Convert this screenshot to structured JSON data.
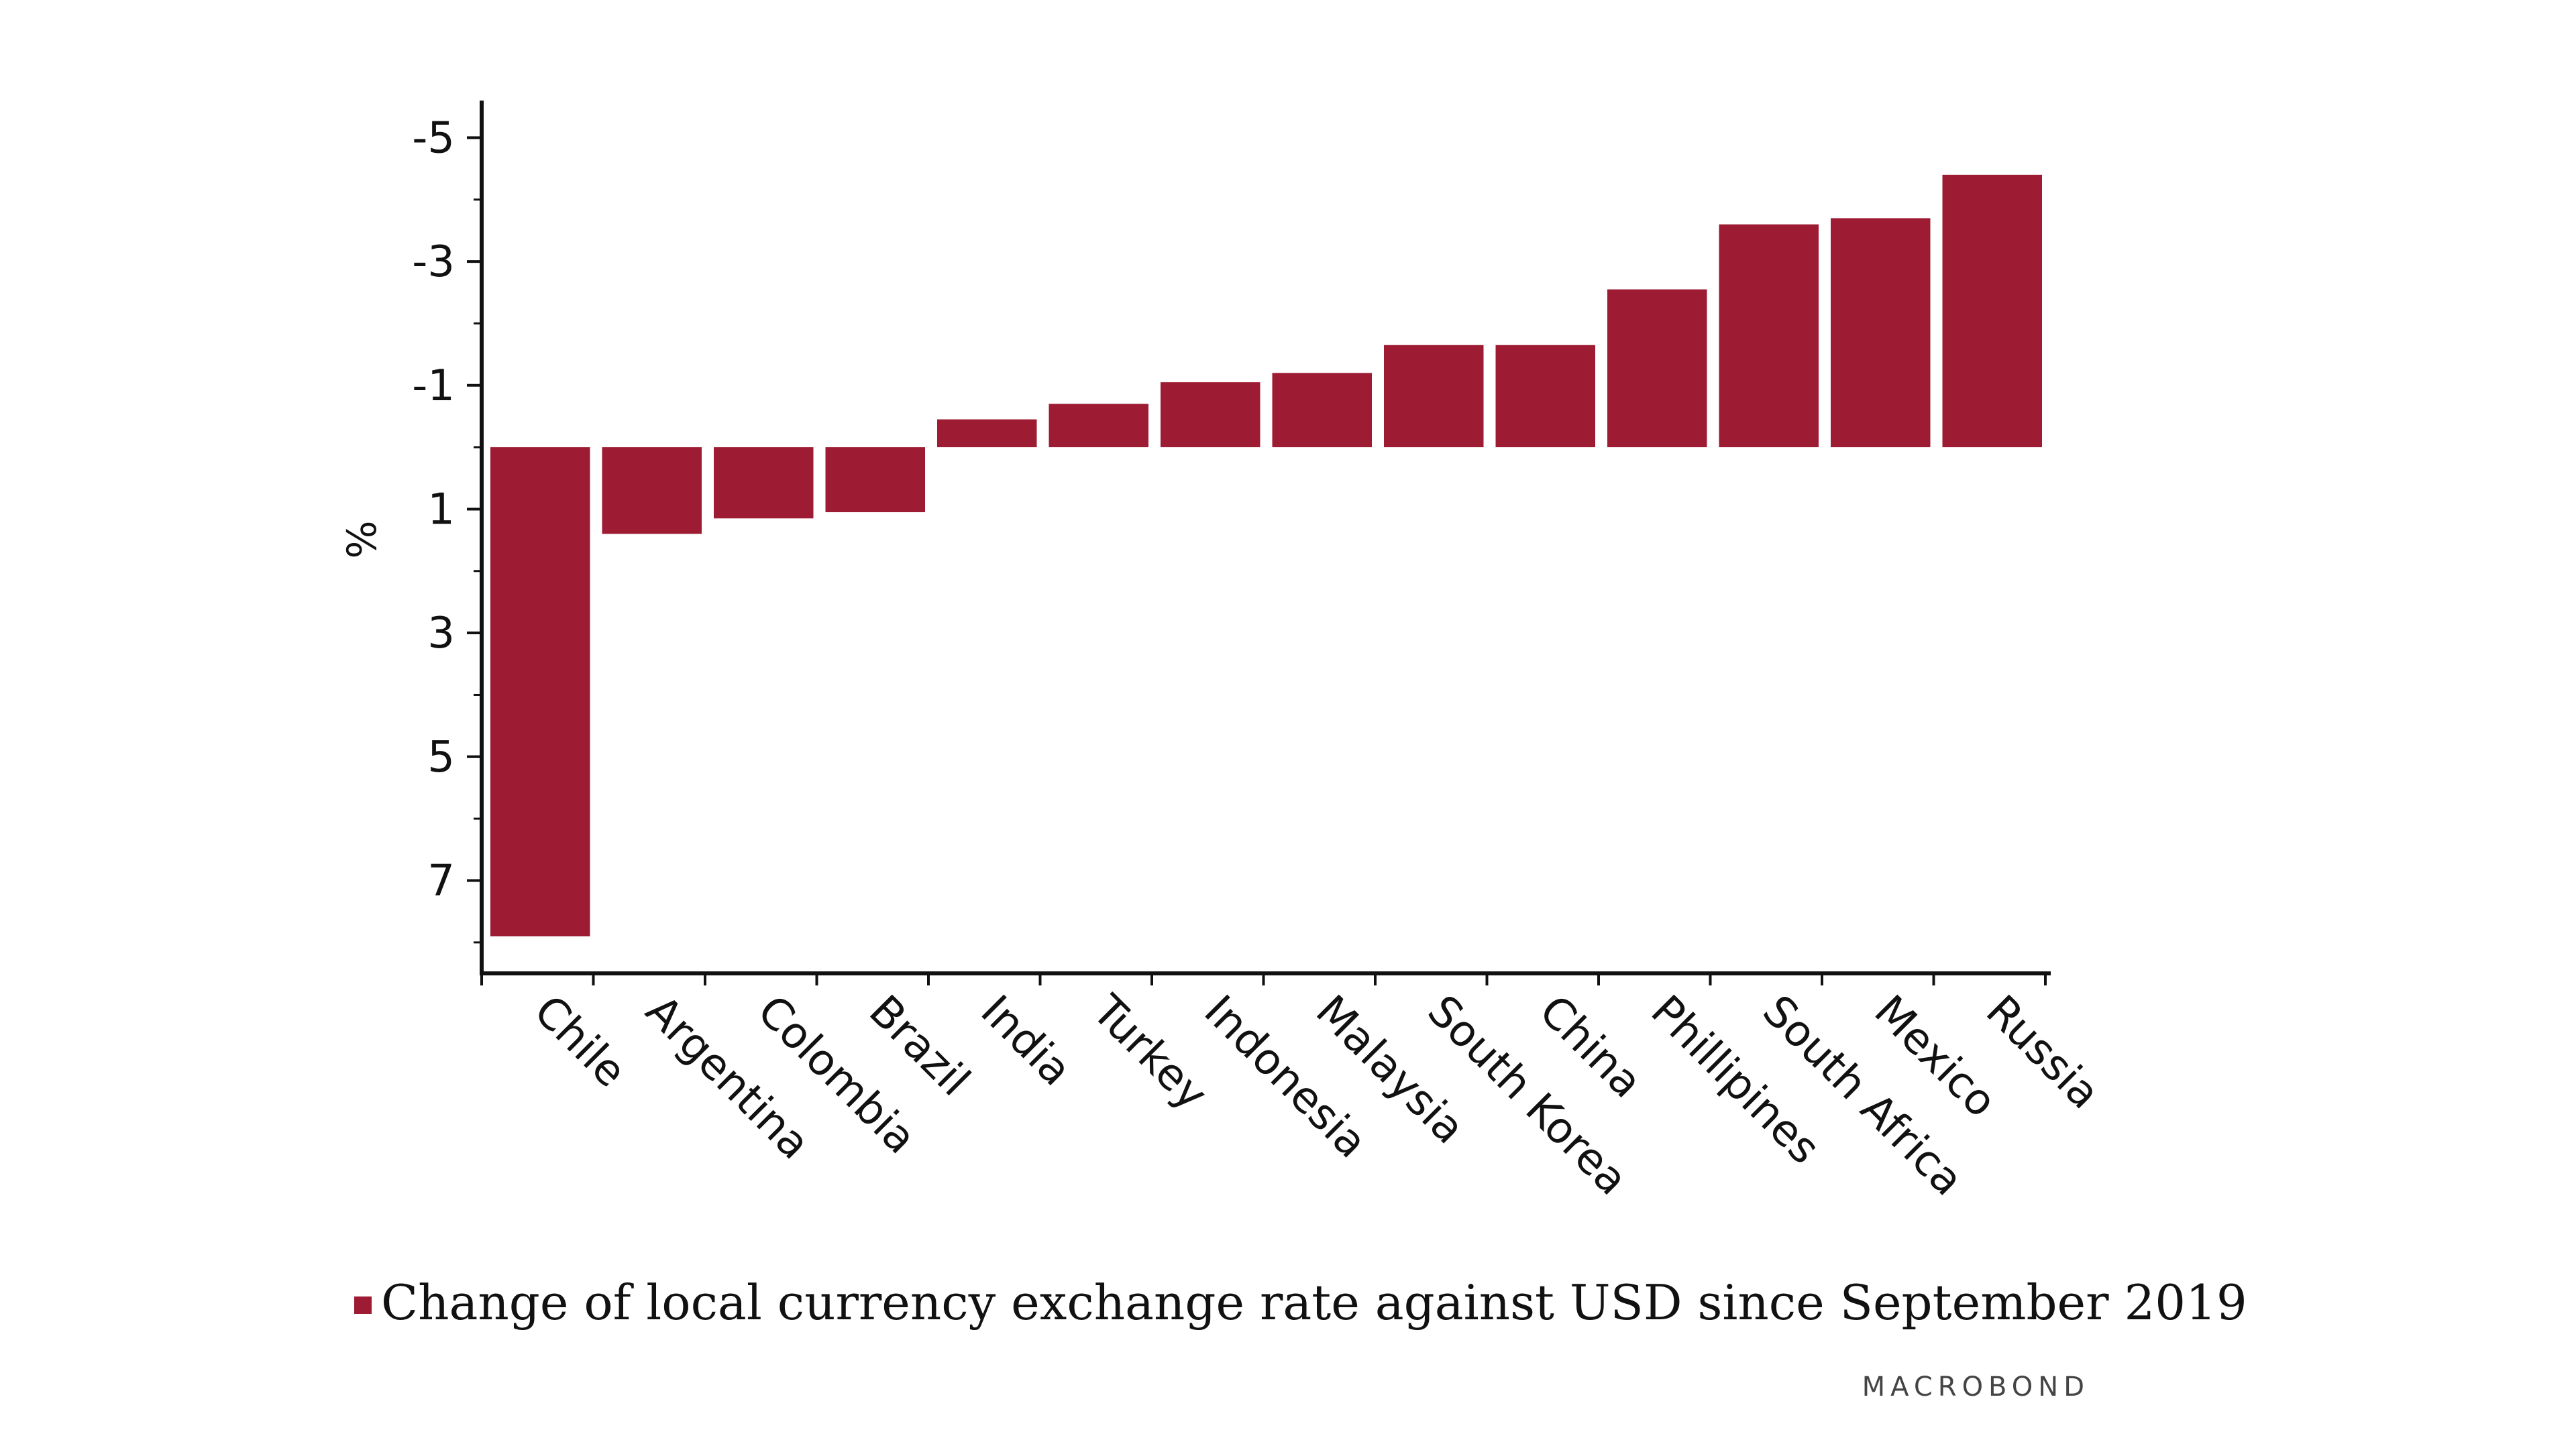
{
  "colors": {
    "bar": "#9e1c33",
    "axis": "#111111",
    "background": "#ffffff"
  },
  "brand": {
    "text": "MACROBOND"
  },
  "chart_data": {
    "type": "bar",
    "ylabel": "%",
    "y_inverted": true,
    "ylim": [
      -5.6,
      8.5
    ],
    "yticks": [
      -5,
      -3,
      -1,
      1,
      3,
      5,
      7
    ],
    "ytick_labels": [
      "-5",
      "-3",
      "-1",
      "1",
      "3",
      "5",
      "7"
    ],
    "grid": false,
    "legend_position": "bottom",
    "categories": [
      "Chile",
      "Argentina",
      "Colombia",
      "Brazil",
      "India",
      "Turkey",
      "Indonesia",
      "Malaysia",
      "South Korea",
      "China",
      "Phillipines",
      "South Africa",
      "Mexico",
      "Russia"
    ],
    "series": [
      {
        "name": "Change of local currency exchange rate against USD since September 2019",
        "values": [
          7.9,
          1.4,
          1.15,
          1.05,
          -0.45,
          -0.7,
          -1.05,
          -1.2,
          -1.65,
          -1.65,
          -2.55,
          -3.6,
          -3.7,
          -4.4
        ]
      }
    ]
  }
}
